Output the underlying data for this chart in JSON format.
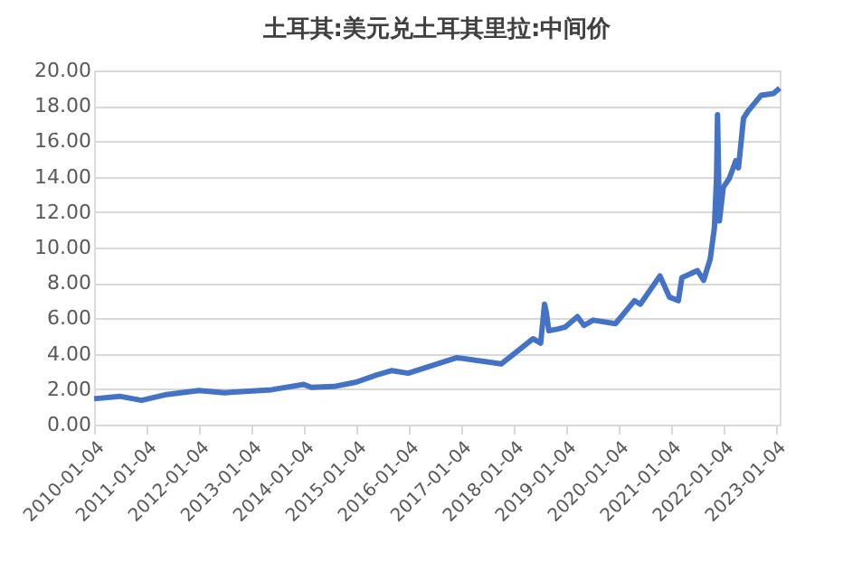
{
  "chart_data": {
    "type": "line",
    "title": "土耳其:美元兑土耳其里拉:中间价",
    "x": [
      "2010-01-04",
      "2010-07-01",
      "2010-12-01",
      "2011-05-25",
      "2012-01-04",
      "2012-07-01",
      "2013-05-25",
      "2014-01-04",
      "2014-02-25",
      "2014-08-01",
      "2015-01-04",
      "2015-05-25",
      "2015-09-10",
      "2016-01-01",
      "2016-12-05",
      "2017-10-10",
      "2018-01-08",
      "2018-05-20",
      "2018-07-12",
      "2018-08-08",
      "2018-08-20",
      "2018-09-07",
      "2018-11-10",
      "2018-12-28",
      "2019-03-25",
      "2019-05-10",
      "2019-07-12",
      "2019-12-15",
      "2020-04-25",
      "2020-06-05",
      "2020-10-20",
      "2020-12-25",
      "2021-02-25",
      "2021-03-22",
      "2021-07-08",
      "2021-08-20",
      "2021-10-05",
      "2021-11-03",
      "2021-11-18",
      "2021-11-25",
      "2021-12-08",
      "2022-01-04",
      "2022-02-15",
      "2022-04-01",
      "2022-04-20",
      "2022-05-25",
      "2022-06-25",
      "2022-09-25",
      "2022-12-20",
      "2023-02-01"
    ],
    "series": [
      {
        "color": "#4472c4",
        "values": [
          1.46,
          1.6,
          1.37,
          1.7,
          1.93,
          1.8,
          1.97,
          2.27,
          2.1,
          2.15,
          2.4,
          2.8,
          3.05,
          2.9,
          3.78,
          3.43,
          4.0,
          4.85,
          4.6,
          6.8,
          6.35,
          5.3,
          5.4,
          5.5,
          6.1,
          5.6,
          5.9,
          5.7,
          7.0,
          6.8,
          8.4,
          7.2,
          7.0,
          8.3,
          8.7,
          8.15,
          9.35,
          11.1,
          13.9,
          17.5,
          11.5,
          13.4,
          13.9,
          14.9,
          14.5,
          17.3,
          17.7,
          18.6,
          18.7,
          19.0
        ]
      }
    ],
    "xlim": [
      "2010-01-04",
      "2023-02-01"
    ],
    "xticks": [
      "2010-01-04",
      "2011-01-04",
      "2012-01-04",
      "2013-01-04",
      "2014-01-04",
      "2015-01-04",
      "2016-01-04",
      "2017-01-04",
      "2018-01-04",
      "2019-01-04",
      "2020-01-04",
      "2021-01-04",
      "2022-01-04",
      "2023-01-04"
    ],
    "ylim": [
      0,
      20
    ],
    "yticks": [
      {
        "value": 0,
        "label": "0.00"
      },
      {
        "value": 2,
        "label": "2.00"
      },
      {
        "value": 4,
        "label": "4.00"
      },
      {
        "value": 6,
        "label": "6.00"
      },
      {
        "value": 8,
        "label": "8.00"
      },
      {
        "value": 10,
        "label": "10.00"
      },
      {
        "value": 12,
        "label": "12.00"
      },
      {
        "value": 14,
        "label": "14.00"
      },
      {
        "value": 16,
        "label": "16.00"
      },
      {
        "value": 18,
        "label": "18.00"
      },
      {
        "value": 20,
        "label": "20.00"
      }
    ],
    "grid": "y",
    "marker": "none",
    "line_style": "solid"
  }
}
